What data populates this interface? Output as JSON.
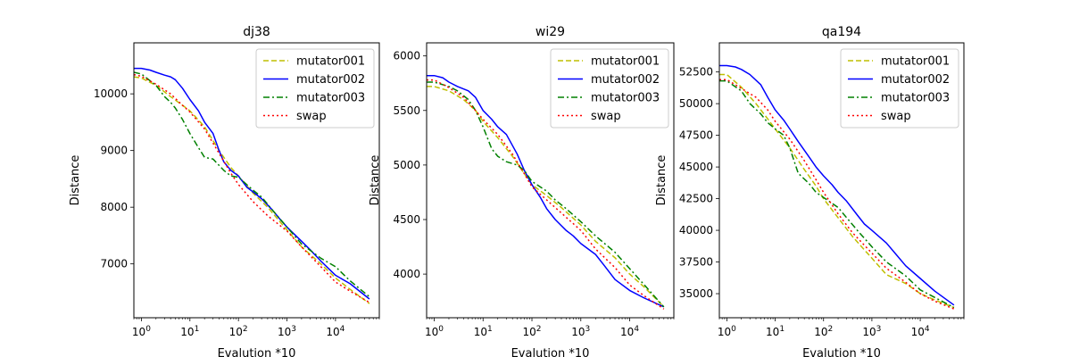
{
  "colors": {
    "mutator001": "#bfbf00",
    "mutator002": "#0000ff",
    "mutator003": "#008000",
    "swap": "#ff0000"
  },
  "chart_data": [
    {
      "type": "line",
      "title": "dj38",
      "xlabel": "Evalution *10",
      "ylabel": "Distance",
      "xscale": "log",
      "xlim": [
        0.7,
        80000
      ],
      "ylim": [
        6050,
        10900
      ],
      "yticks": [
        7000,
        8000,
        9000,
        10000
      ],
      "ytick_labels": [
        "7000",
        "8000",
        "9000",
        "10000"
      ],
      "xticks": [
        1,
        10,
        100,
        1000,
        10000
      ],
      "xtick_labels": [
        {
          "base": "10",
          "exp": "0"
        },
        {
          "base": "10",
          "exp": "1"
        },
        {
          "base": "10",
          "exp": "2"
        },
        {
          "base": "10",
          "exp": "3"
        },
        {
          "base": "10",
          "exp": "4"
        }
      ],
      "legend": "top-right",
      "series": [
        {
          "name": "mutator001",
          "style": "dashed",
          "x": [
            0.7,
            1,
            2,
            4,
            7,
            10,
            20,
            40,
            70,
            100,
            200,
            400,
            1000,
            2000,
            5000,
            10000,
            20000,
            50000
          ],
          "y": [
            10300,
            10280,
            10150,
            9950,
            9800,
            9700,
            9420,
            9000,
            8700,
            8550,
            8250,
            8000,
            7600,
            7300,
            7000,
            6750,
            6550,
            6300
          ]
        },
        {
          "name": "mutator002",
          "style": "solid",
          "x": [
            0.7,
            1,
            1.5,
            2,
            3,
            4,
            5,
            7,
            10,
            15,
            20,
            30,
            40,
            50,
            70,
            100,
            150,
            200,
            300,
            500,
            700,
            1000,
            2000,
            3000,
            5000,
            10000,
            20000,
            50000
          ],
          "y": [
            10450,
            10450,
            10420,
            10380,
            10330,
            10300,
            10250,
            10100,
            9900,
            9700,
            9500,
            9300,
            9000,
            8800,
            8650,
            8550,
            8350,
            8270,
            8150,
            7950,
            7800,
            7650,
            7400,
            7250,
            7050,
            6800,
            6650,
            6380
          ]
        },
        {
          "name": "mutator003",
          "style": "dashdot",
          "x": [
            0.7,
            1,
            2,
            3,
            4,
            5,
            7,
            10,
            15,
            20,
            30,
            50,
            70,
            100,
            200,
            300,
            500,
            1000,
            2000,
            5000,
            10000,
            20000,
            50000
          ],
          "y": [
            10380,
            10350,
            10150,
            9950,
            9850,
            9750,
            9550,
            9300,
            9050,
            8880,
            8850,
            8650,
            8550,
            8530,
            8300,
            8180,
            7950,
            7650,
            7350,
            7100,
            6950,
            6700,
            6420
          ]
        },
        {
          "name": "swap",
          "style": "dotted",
          "x": [
            0.7,
            1,
            2,
            4,
            7,
            10,
            20,
            40,
            70,
            100,
            200,
            400,
            1000,
            2000,
            5000,
            10000,
            20000,
            50000
          ],
          "y": [
            10340,
            10310,
            10170,
            10000,
            9800,
            9680,
            9380,
            8950,
            8600,
            8400,
            8100,
            7850,
            7580,
            7300,
            6950,
            6680,
            6520,
            6320
          ]
        }
      ]
    },
    {
      "type": "line",
      "title": "wi29",
      "xlabel": "Evalution *10",
      "ylabel": "Distance",
      "xscale": "log",
      "xlim": [
        0.7,
        80000
      ],
      "ylim": [
        3600,
        6120
      ],
      "yticks": [
        4000,
        4500,
        5000,
        5500,
        6000
      ],
      "ytick_labels": [
        "4000",
        "4500",
        "5000",
        "5500",
        "6000"
      ],
      "xticks": [
        1,
        10,
        100,
        1000,
        10000
      ],
      "xtick_labels": [
        {
          "base": "10",
          "exp": "0"
        },
        {
          "base": "10",
          "exp": "1"
        },
        {
          "base": "10",
          "exp": "2"
        },
        {
          "base": "10",
          "exp": "3"
        },
        {
          "base": "10",
          "exp": "4"
        }
      ],
      "legend": "top-right",
      "series": [
        {
          "name": "mutator001",
          "style": "dashed",
          "x": [
            0.7,
            1,
            2,
            4,
            7,
            10,
            20,
            40,
            70,
            100,
            200,
            400,
            1000,
            2000,
            5000,
            10000,
            20000,
            50000
          ],
          "y": [
            5720,
            5720,
            5680,
            5600,
            5500,
            5400,
            5250,
            5080,
            4920,
            4820,
            4720,
            4610,
            4450,
            4300,
            4150,
            4000,
            3880,
            3700
          ]
        },
        {
          "name": "mutator002",
          "style": "solid",
          "x": [
            0.7,
            1,
            1.5,
            2,
            3,
            5,
            7,
            10,
            15,
            20,
            30,
            50,
            70,
            100,
            150,
            200,
            300,
            500,
            700,
            1000,
            2000,
            3000,
            5000,
            10000,
            20000,
            50000
          ],
          "y": [
            5820,
            5820,
            5800,
            5760,
            5720,
            5680,
            5620,
            5500,
            5420,
            5350,
            5280,
            5100,
            4950,
            4820,
            4700,
            4600,
            4500,
            4400,
            4350,
            4280,
            4180,
            4080,
            3950,
            3850,
            3780,
            3700
          ]
        },
        {
          "name": "mutator003",
          "style": "dashdot",
          "x": [
            0.7,
            1,
            2,
            3,
            5,
            7,
            10,
            15,
            20,
            30,
            50,
            70,
            100,
            200,
            300,
            500,
            1000,
            2000,
            5000,
            10000,
            20000,
            50000
          ],
          "y": [
            5760,
            5760,
            5720,
            5680,
            5600,
            5500,
            5350,
            5150,
            5080,
            5030,
            5000,
            4950,
            4850,
            4760,
            4680,
            4600,
            4480,
            4350,
            4200,
            4050,
            3900,
            3700
          ]
        },
        {
          "name": "swap",
          "style": "dotted",
          "x": [
            0.7,
            1,
            2,
            4,
            7,
            10,
            20,
            40,
            70,
            100,
            200,
            400,
            1000,
            2000,
            5000,
            10000,
            20000,
            50000
          ],
          "y": [
            5780,
            5780,
            5710,
            5620,
            5500,
            5420,
            5280,
            5100,
            4920,
            4800,
            4680,
            4560,
            4400,
            4230,
            4060,
            3900,
            3800,
            3680
          ]
        }
      ]
    },
    {
      "type": "line",
      "title": "qa194",
      "xlabel": "Evalution *10",
      "ylabel": "Distance",
      "xscale": "log",
      "xlim": [
        0.7,
        80000
      ],
      "ylim": [
        33100,
        54800
      ],
      "yticks": [
        35000,
        37500,
        40000,
        42500,
        45000,
        47500,
        50000,
        52500
      ],
      "ytick_labels": [
        "35000",
        "37500",
        "40000",
        "42500",
        "45000",
        "47500",
        "50000",
        "52500"
      ],
      "xticks": [
        1,
        10,
        100,
        1000,
        10000
      ],
      "xtick_labels": [
        {
          "base": "10",
          "exp": "0"
        },
        {
          "base": "10",
          "exp": "1"
        },
        {
          "base": "10",
          "exp": "2"
        },
        {
          "base": "10",
          "exp": "3"
        },
        {
          "base": "10",
          "exp": "4"
        }
      ],
      "legend": "top-right",
      "series": [
        {
          "name": "mutator001",
          "style": "dashed",
          "x": [
            0.7,
            1,
            2,
            4,
            7,
            10,
            20,
            40,
            70,
            100,
            200,
            400,
            1000,
            2000,
            5000,
            10000,
            20000,
            50000
          ],
          "y": [
            52300,
            52300,
            51300,
            50000,
            48800,
            48000,
            46500,
            44800,
            43500,
            42500,
            41000,
            39500,
            37800,
            36500,
            35800,
            35000,
            34500,
            33900
          ]
        },
        {
          "name": "mutator002",
          "style": "solid",
          "x": [
            0.7,
            1,
            1.5,
            2,
            3,
            5,
            7,
            10,
            15,
            20,
            30,
            50,
            70,
            100,
            150,
            200,
            300,
            500,
            700,
            1000,
            2000,
            3000,
            5000,
            10000,
            20000,
            50000
          ],
          "y": [
            53000,
            53000,
            52900,
            52700,
            52300,
            51500,
            50500,
            49500,
            48700,
            48000,
            47000,
            45800,
            45000,
            44300,
            43600,
            43000,
            42300,
            41200,
            40500,
            40000,
            39000,
            38200,
            37200,
            36200,
            35200,
            34100
          ]
        },
        {
          "name": "mutator003",
          "style": "dashdot",
          "x": [
            0.7,
            1,
            2,
            3,
            5,
            7,
            10,
            15,
            20,
            30,
            50,
            70,
            100,
            200,
            300,
            500,
            1000,
            2000,
            5000,
            10000,
            20000,
            50000
          ],
          "y": [
            51800,
            51800,
            51000,
            50000,
            49200,
            48500,
            48000,
            47500,
            46500,
            44500,
            43700,
            43000,
            42600,
            41800,
            41000,
            40000,
            38700,
            37500,
            36400,
            35300,
            34700,
            33900
          ]
        },
        {
          "name": "swap",
          "style": "dotted",
          "x": [
            0.7,
            1,
            2,
            4,
            7,
            10,
            20,
            40,
            70,
            100,
            200,
            400,
            1000,
            2000,
            5000,
            10000,
            20000,
            50000
          ],
          "y": [
            51900,
            51900,
            51200,
            50500,
            49500,
            48600,
            47200,
            45500,
            44000,
            43000,
            41300,
            39800,
            38200,
            37000,
            35900,
            35000,
            34400,
            33800
          ]
        }
      ]
    }
  ]
}
